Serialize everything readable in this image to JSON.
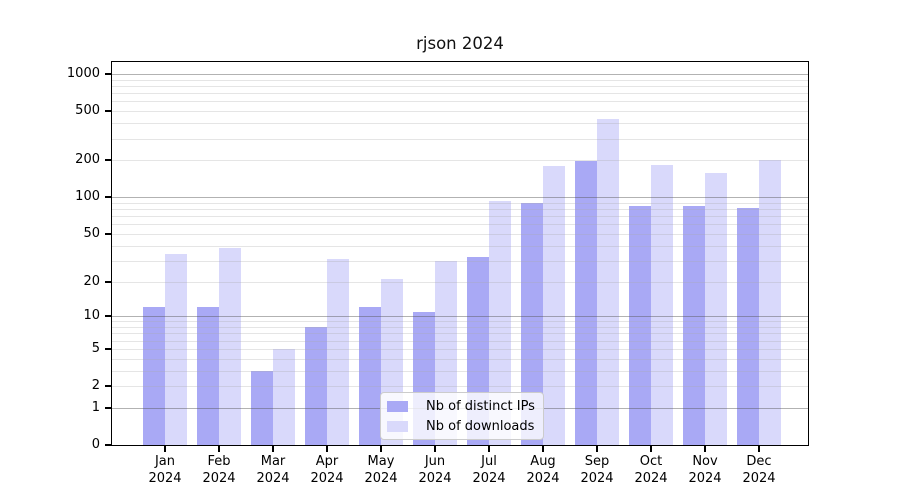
{
  "title": "rjson 2024",
  "chart_data": {
    "type": "bar",
    "title": "rjson 2024",
    "categories": [
      "Jan 2024",
      "Feb 2024",
      "Mar 2024",
      "Apr 2024",
      "May 2024",
      "Jun 2024",
      "Jul 2024",
      "Aug 2024",
      "Sep 2024",
      "Oct 2024",
      "Nov 2024",
      "Dec 2024"
    ],
    "series": [
      {
        "name": "Nb of distinct IPs",
        "color": "#a9a9f5",
        "values": [
          12,
          12,
          3,
          8,
          12,
          11,
          32,
          89,
          197,
          84,
          85,
          81
        ]
      },
      {
        "name": "Nb of downloads",
        "color": "#d9d9fb",
        "values": [
          34,
          38,
          5,
          31,
          21,
          30,
          93,
          180,
          430,
          183,
          158,
          200
        ]
      }
    ],
    "yscale": "log1p",
    "yticks": [
      0,
      1,
      2,
      5,
      10,
      20,
      50,
      100,
      200,
      500,
      1000
    ],
    "ylim": [
      0,
      1250
    ],
    "xlabel": "",
    "ylabel": "",
    "grid": "on",
    "legend_position": "lower-center"
  },
  "colors": {
    "bar_dark": "#a9a9f5",
    "bar_light": "#d9d9fb",
    "grid_major": "#b2b2b2",
    "grid_minor": "#e7e7e7",
    "frame": "#000000",
    "background": "#ffffff"
  }
}
